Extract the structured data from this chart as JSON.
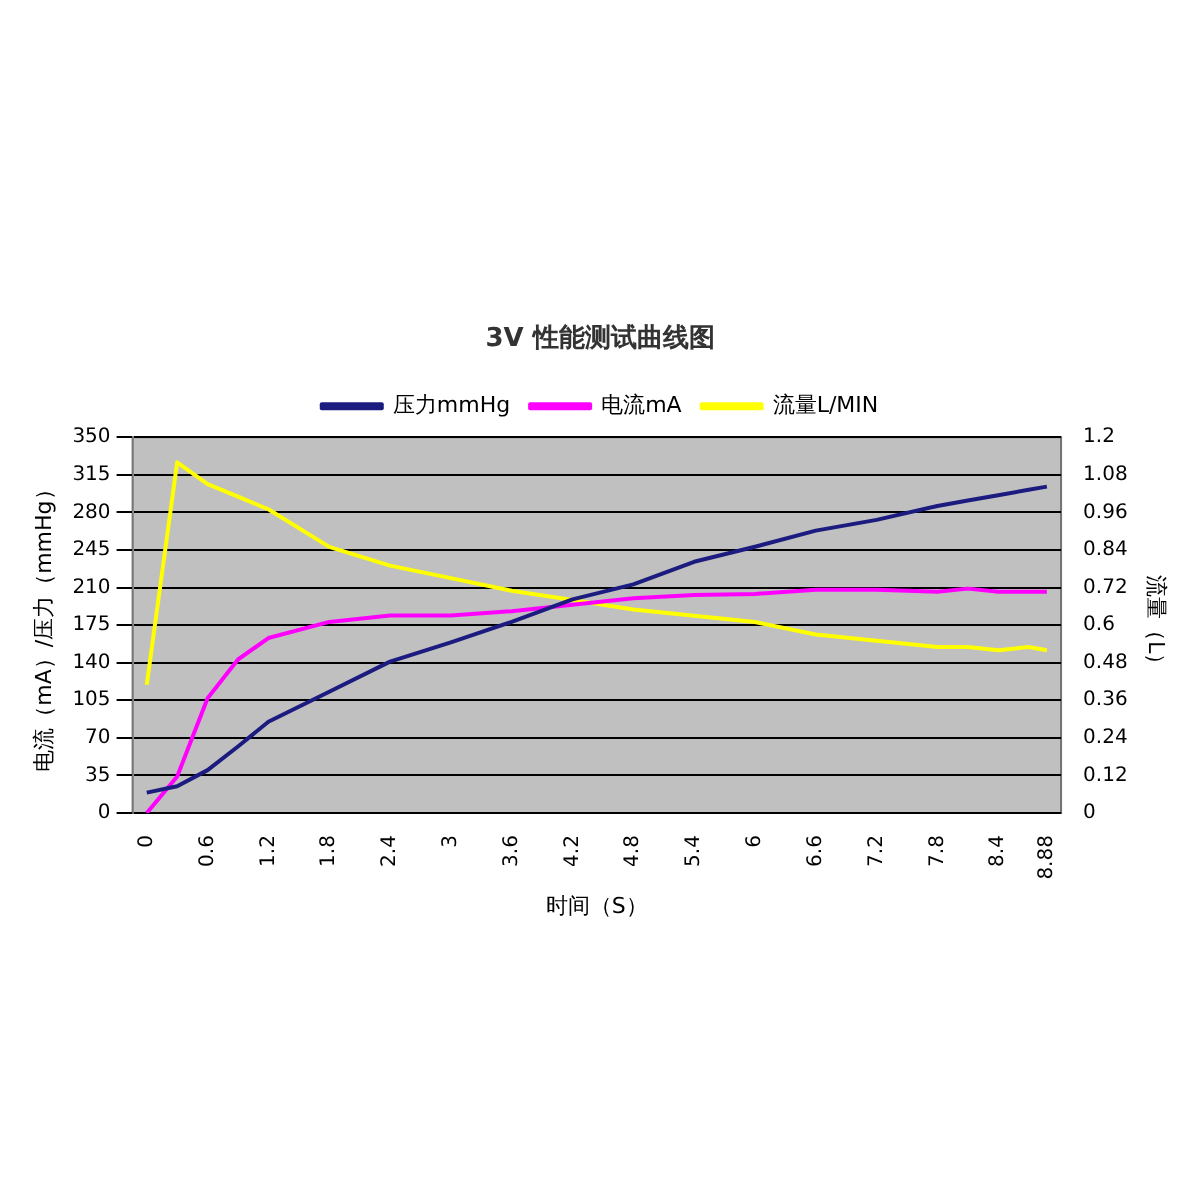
{
  "chart_data": {
    "type": "line",
    "title": "3V 性能测试曲线图",
    "xlabel": "时间（S）",
    "ylabel": "电流（mA）/压力（mmHg）",
    "y2label": "流量（L）",
    "x": [
      0,
      0.3,
      0.6,
      0.9,
      1.2,
      1.8,
      2.4,
      3.0,
      3.6,
      4.2,
      4.8,
      5.4,
      6.0,
      6.6,
      7.2,
      7.8,
      8.1,
      8.4,
      8.7,
      8.88
    ],
    "series": [
      {
        "name": "压力mmHg",
        "color": "#1c1c80",
        "values": [
          19,
          25,
          40,
          62,
          85,
          113,
          141,
          159,
          178,
          199,
          213,
          234,
          248,
          263,
          273,
          286,
          291,
          296,
          301,
          304
        ]
      },
      {
        "name": "电流mA",
        "color": "#ff00ff",
        "values": [
          0,
          34,
          107,
          143,
          163,
          178,
          184,
          184,
          188,
          194,
          200,
          203,
          204,
          208,
          208,
          206,
          209,
          206,
          206,
          206
        ]
      },
      {
        "name": "流量L/MIN",
        "color": "#ffff00",
        "axis": "y2",
        "values": [
          0.41,
          1.12,
          1.05,
          1.01,
          0.97,
          0.85,
          0.79,
          0.75,
          0.71,
          0.68,
          0.65,
          0.63,
          0.61,
          0.57,
          0.55,
          0.53,
          0.53,
          0.52,
          0.53,
          0.52
        ]
      }
    ],
    "xlim": [
      -0.14,
      9.02
    ],
    "xticks": [
      0,
      0.6,
      1.2,
      1.8,
      2.4,
      3,
      3.6,
      4.2,
      4.8,
      5.4,
      6,
      6.6,
      7.2,
      7.8,
      8.4,
      8.88
    ],
    "ylim": [
      0,
      350
    ],
    "yticks": [
      0,
      35,
      70,
      105,
      140,
      175,
      210,
      245,
      280,
      315,
      350
    ],
    "y2lim": [
      0,
      1.2
    ],
    "y2ticks": [
      0,
      0.12,
      0.24,
      0.36,
      0.48,
      0.6,
      0.72,
      0.84,
      0.96,
      1.08,
      1.2
    ],
    "grid": "y",
    "legend": "top",
    "marker": "none",
    "line_style": "solid"
  }
}
